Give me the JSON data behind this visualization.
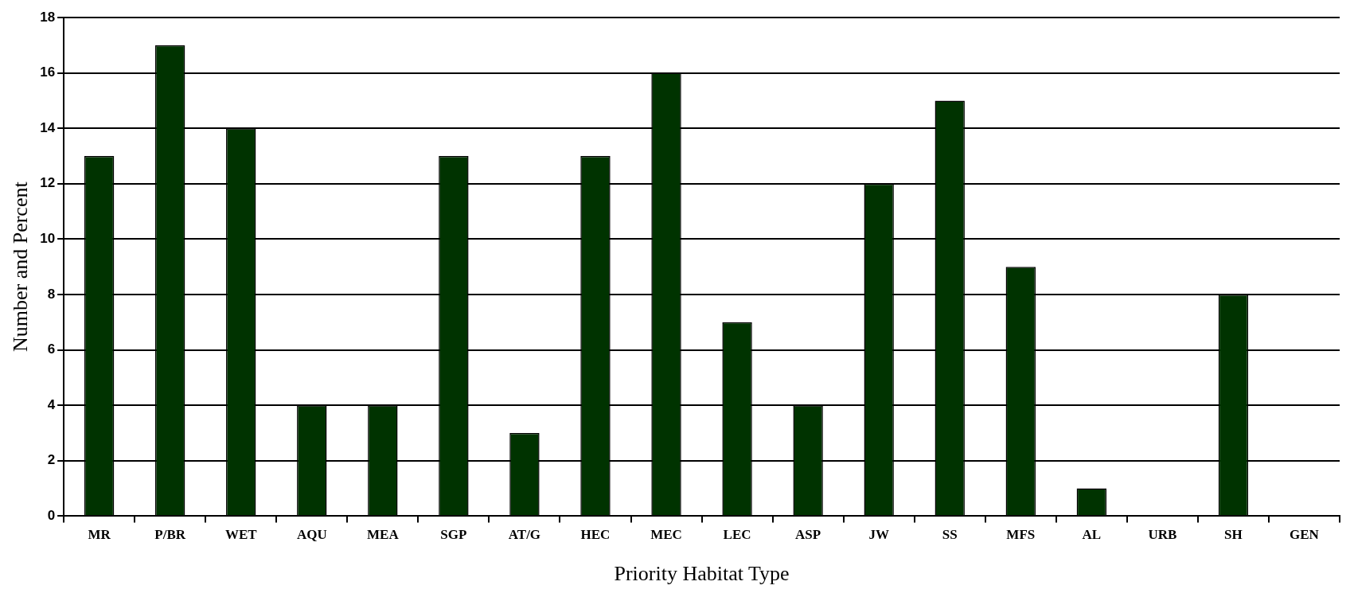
{
  "chart_data": {
    "type": "bar",
    "xlabel": "Priority Habitat Type",
    "ylabel": "Number and Percent",
    "categories": [
      "MR",
      "P/BR",
      "WET",
      "AQU",
      "MEA",
      "SGP",
      "AT/G",
      "HEC",
      "MEC",
      "LEC",
      "ASP",
      "JW",
      "SS",
      "MFS",
      "AL",
      "URB",
      "SH",
      "GEN"
    ],
    "values": [
      13,
      17,
      14,
      4,
      4,
      13,
      3,
      13,
      16,
      7,
      4,
      12,
      15,
      9,
      1,
      0,
      8,
      0
    ],
    "color": "#003300",
    "ylim": [
      0,
      18
    ],
    "yticks": [
      0,
      2,
      4,
      6,
      8,
      10,
      12,
      14,
      16,
      18
    ],
    "grid": "y",
    "legend": false
  }
}
